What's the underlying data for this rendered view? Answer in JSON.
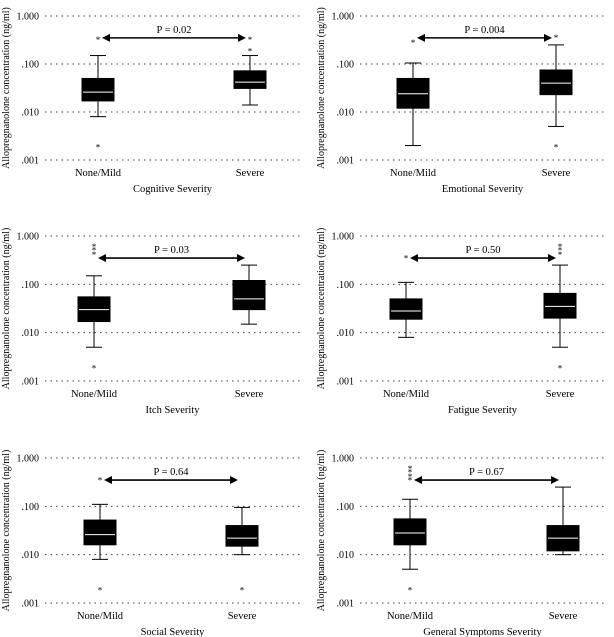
{
  "chart_data": [
    {
      "type": "box",
      "title": "",
      "xlabel": "Cognitive Severity",
      "ylabel": "Allopregnanolone concentration (ng/ml)",
      "y_scale": "log",
      "ylim": [
        0.001,
        1.0
      ],
      "y_ticks": [
        1.0,
        0.1,
        0.01,
        0.001
      ],
      "y_tick_labels": [
        "1.000",
        ".100",
        ".010",
        ".001"
      ],
      "grid": "dotted horizontal",
      "categories": [
        "None/Mild",
        "Severe"
      ],
      "boxes": [
        {
          "whisker_low": 0.008,
          "q1": 0.017,
          "median": 0.026,
          "q3": 0.05,
          "whisker_high": 0.15,
          "outliers": [
            0.35,
            0.002
          ]
        },
        {
          "whisker_low": 0.014,
          "q1": 0.031,
          "median": 0.042,
          "q3": 0.072,
          "whisker_high": 0.15,
          "outliers": [
            0.35,
            0.2
          ]
        }
      ],
      "comparison": {
        "label": "P = 0.02"
      }
    },
    {
      "type": "box",
      "title": "",
      "xlabel": "Emotional Severity",
      "ylabel": "Allopregnanolone concentration (ng/ml)",
      "y_scale": "log",
      "ylim": [
        0.001,
        1.0
      ],
      "y_ticks": [
        1.0,
        0.1,
        0.01,
        0.001
      ],
      "y_tick_labels": [
        "1.000",
        ".100",
        ".010",
        ".001"
      ],
      "grid": "dotted horizontal",
      "categories": [
        "None/Mild",
        "Severe"
      ],
      "boxes": [
        {
          "whisker_low": 0.002,
          "q1": 0.012,
          "median": 0.024,
          "q3": 0.05,
          "whisker_high": 0.105,
          "outliers": [
            0.3
          ]
        },
        {
          "whisker_low": 0.005,
          "q1": 0.023,
          "median": 0.04,
          "q3": 0.075,
          "whisker_high": 0.25,
          "outliers": [
            0.38,
            0.002
          ]
        }
      ],
      "comparison": {
        "label": "P = 0.004"
      }
    },
    {
      "type": "box",
      "title": "",
      "xlabel": "Itch Severity",
      "ylabel": "Allopregnanolone concentration (ng/ml)",
      "y_scale": "log",
      "ylim": [
        0.001,
        1.0
      ],
      "y_ticks": [
        1.0,
        0.1,
        0.01,
        0.001
      ],
      "y_tick_labels": [
        "1.000",
        ".100",
        ".010",
        ".001"
      ],
      "grid": "dotted horizontal",
      "categories": [
        "None/Mild",
        "Severe"
      ],
      "boxes": [
        {
          "whisker_low": 0.005,
          "q1": 0.017,
          "median": 0.03,
          "q3": 0.055,
          "whisker_high": 0.15,
          "outliers": [
            0.45,
            0.55,
            0.65,
            0.002
          ]
        },
        {
          "whisker_low": 0.015,
          "q1": 0.03,
          "median": 0.05,
          "q3": 0.12,
          "whisker_high": 0.25,
          "outliers": []
        }
      ],
      "comparison": {
        "label": "P = 0.03"
      }
    },
    {
      "type": "box",
      "title": "",
      "xlabel": "Fatigue Severity",
      "ylabel": "Allopregnanolone concentration (ng/ml)",
      "y_scale": "log",
      "ylim": [
        0.001,
        1.0
      ],
      "y_ticks": [
        1.0,
        0.1,
        0.01,
        0.001
      ],
      "y_tick_labels": [
        "1.000",
        ".100",
        ".010",
        ".001"
      ],
      "grid": "dotted horizontal",
      "categories": [
        "None/Mild",
        "Severe"
      ],
      "boxes": [
        {
          "whisker_low": 0.008,
          "q1": 0.019,
          "median": 0.028,
          "q3": 0.05,
          "whisker_high": 0.11,
          "outliers": [
            0.38
          ]
        },
        {
          "whisker_low": 0.005,
          "q1": 0.02,
          "median": 0.035,
          "q3": 0.065,
          "whisker_high": 0.25,
          "outliers": [
            0.45,
            0.55,
            0.65,
            0.002
          ]
        }
      ],
      "comparison": {
        "label": "P = 0.50"
      }
    },
    {
      "type": "box",
      "title": "",
      "xlabel": "Social Severity",
      "ylabel": "Allopregnanolone concentration (ng/ml)",
      "y_scale": "log",
      "ylim": [
        0.001,
        1.0
      ],
      "y_ticks": [
        1.0,
        0.1,
        0.01,
        0.001
      ],
      "y_tick_labels": [
        "1.000",
        ".100",
        ".010",
        ".001"
      ],
      "grid": "dotted horizontal",
      "categories": [
        "None/Mild",
        "Severe"
      ],
      "boxes": [
        {
          "whisker_low": 0.008,
          "q1": 0.016,
          "median": 0.026,
          "q3": 0.052,
          "whisker_high": 0.11,
          "outliers": [
            0.38,
            0.002
          ]
        },
        {
          "whisker_low": 0.01,
          "q1": 0.015,
          "median": 0.022,
          "q3": 0.04,
          "whisker_high": 0.095,
          "outliers": [
            0.002
          ]
        }
      ],
      "comparison": {
        "label": "P = 0.64"
      }
    },
    {
      "type": "box",
      "title": "",
      "xlabel": "General Symptoms Severity",
      "ylabel": "Allopregnanolone concentration (ng/ml)",
      "y_scale": "log",
      "ylim": [
        0.001,
        1.0
      ],
      "y_ticks": [
        1.0,
        0.1,
        0.01,
        0.001
      ],
      "y_tick_labels": [
        "1.000",
        ".100",
        ".010",
        ".001"
      ],
      "grid": "dotted horizontal",
      "categories": [
        "None/Mild",
        "Severe"
      ],
      "boxes": [
        {
          "whisker_low": 0.005,
          "q1": 0.016,
          "median": 0.028,
          "q3": 0.055,
          "whisker_high": 0.14,
          "outliers": [
            0.38,
            0.45,
            0.55,
            0.65,
            0.002
          ]
        },
        {
          "whisker_low": 0.01,
          "q1": 0.012,
          "median": 0.022,
          "q3": 0.04,
          "whisker_high": 0.25,
          "outliers": []
        }
      ],
      "comparison": {
        "label": "P = 0.67"
      }
    }
  ],
  "style": {
    "box_fill": "#000000",
    "median_color": "#ffffff",
    "line_color": "#000000",
    "grid_color": "#444444"
  }
}
